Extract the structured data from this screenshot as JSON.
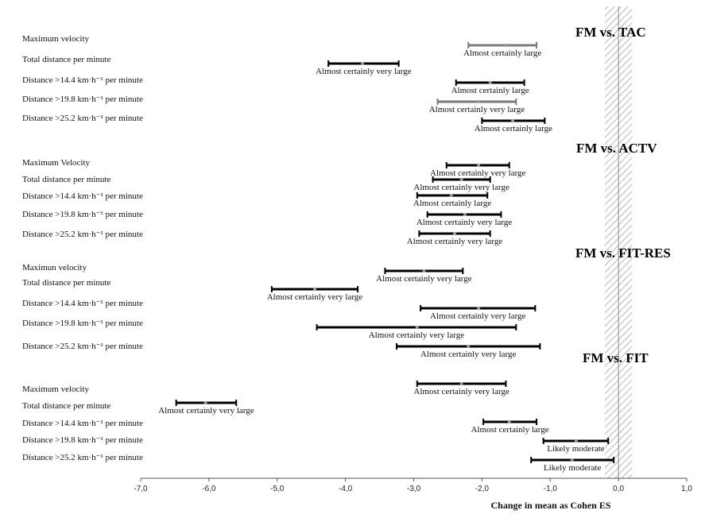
{
  "chart_data": {
    "type": "forest",
    "xlabel": "Change in mean as Cohen ES",
    "xlim": [
      -7.0,
      1.0
    ],
    "x_ticks": [
      "-7,0",
      "-6,0",
      "-5,0",
      "-4,0",
      "-3,0",
      "-2,0",
      "-1,0",
      "0,0",
      "1,0"
    ],
    "x_tick_values": [
      -7,
      -6,
      -5,
      -4,
      -3,
      -2,
      -1,
      0,
      1
    ],
    "trivial_zone": [
      -0.2,
      0.2
    ],
    "groups": [
      {
        "title": "FM vs. TAC",
        "rows": [
          {
            "label": "Maximum velocity",
            "mean": -1.64,
            "lower": -2.2,
            "upper": -1.2,
            "inference": "Almost certainly large",
            "color": "#7a7a7a"
          },
          {
            "label": "Total distance per minute",
            "mean": -3.75,
            "lower": -4.25,
            "upper": -3.22,
            "inference": "Almost certainly very large",
            "color": "#000000"
          },
          {
            "label": "Distance  >14.4 km·h⁻¹ per minute",
            "mean": -1.88,
            "lower": -2.38,
            "upper": -1.38,
            "inference": "Almost certainly large",
            "color": "#000000"
          },
          {
            "label": "Distance >19.8 km·h⁻¹ per minute",
            "mean": -2.05,
            "lower": -2.65,
            "upper": -1.5,
            "inference": "Almost certainly very large",
            "color": "#7a7a7a"
          },
          {
            "label": "Distance  >25.2 km·h⁻¹ per minute",
            "mean": -1.55,
            "lower": -2.0,
            "upper": -1.08,
            "inference": "Almost certainly large",
            "color": "#000000"
          }
        ]
      },
      {
        "title": "FM vs. ACTV",
        "rows": [
          {
            "label": "Maximum Velocity",
            "mean": -2.05,
            "lower": -2.52,
            "upper": -1.6,
            "inference": "Almost certainly very large",
            "color": "#000000"
          },
          {
            "label": "Total distance per minute",
            "mean": -2.3,
            "lower": -2.72,
            "upper": -1.88,
            "inference": "Almost certainly very large",
            "color": "#000000"
          },
          {
            "label": "Distance  >14.4 km·h⁻¹ per minute",
            "mean": -2.45,
            "lower": -2.95,
            "upper": -1.92,
            "inference": "Almost certainly large",
            "color": "#000000"
          },
          {
            "label": "Distance  >19.8 km·h⁻¹ per minute",
            "mean": -2.25,
            "lower": -2.8,
            "upper": -1.72,
            "inference": "Almost certainly very large",
            "color": "#000000"
          },
          {
            "label": "Distance  >25.2 km·h⁻¹ per minute",
            "mean": -2.4,
            "lower": -2.92,
            "upper": -1.88,
            "inference": "Almost certainly very large",
            "color": "#000000"
          }
        ]
      },
      {
        "title": "FM vs. FIT-RES",
        "rows": [
          {
            "label": "Maximun velocity",
            "mean": -2.85,
            "lower": -3.42,
            "upper": -2.28,
            "inference": "Almost certainly very large",
            "color": "#000000"
          },
          {
            "label": "Total distance per minute",
            "mean": -4.45,
            "lower": -5.08,
            "upper": -3.82,
            "inference": "Almost certainly very large",
            "color": "#000000"
          },
          {
            "label": "Distance >14.4 km·h⁻¹ per minute",
            "mean": -2.05,
            "lower": -2.9,
            "upper": -1.22,
            "inference": "Almost certainly very large",
            "color": "#000000"
          },
          {
            "label": "Distance  >19.8 km·h⁻¹ per minute",
            "mean": -2.95,
            "lower": -4.42,
            "upper": -1.5,
            "inference": "Almost certainly very large",
            "color": "#000000"
          },
          {
            "label": "Distance  >25.2 km·h⁻¹ per minute",
            "mean": -2.2,
            "lower": -3.25,
            "upper": -1.15,
            "inference": "Almost certainly very large",
            "color": "#000000"
          }
        ]
      },
      {
        "title": "FM vs. FIT",
        "rows": [
          {
            "label": "Maximum velocity",
            "mean": -2.3,
            "lower": -2.95,
            "upper": -1.65,
            "inference": "Almost certainly very large",
            "color": "#000000"
          },
          {
            "label": "Total distance per minute",
            "mean": -6.05,
            "lower": -6.48,
            "upper": -5.6,
            "inference": "Almost certainly very large",
            "color": "#000000"
          },
          {
            "label": "Distance  >14.4 km·h⁻¹ per minute",
            "mean": -1.6,
            "lower": -1.98,
            "upper": -1.2,
            "inference": "Almost certainly large",
            "color": "#000000"
          },
          {
            "label": "Distance  >19.8 km·h⁻¹ per minute",
            "mean": -0.62,
            "lower": -1.1,
            "upper": -0.15,
            "inference": "Likely moderate",
            "color": "#000000"
          },
          {
            "label": "Distance >25.2 km·h⁻¹ per minute",
            "mean": -0.68,
            "lower": -1.28,
            "upper": -0.07,
            "inference": "Likely moderate",
            "color": "#000000"
          }
        ]
      }
    ]
  }
}
